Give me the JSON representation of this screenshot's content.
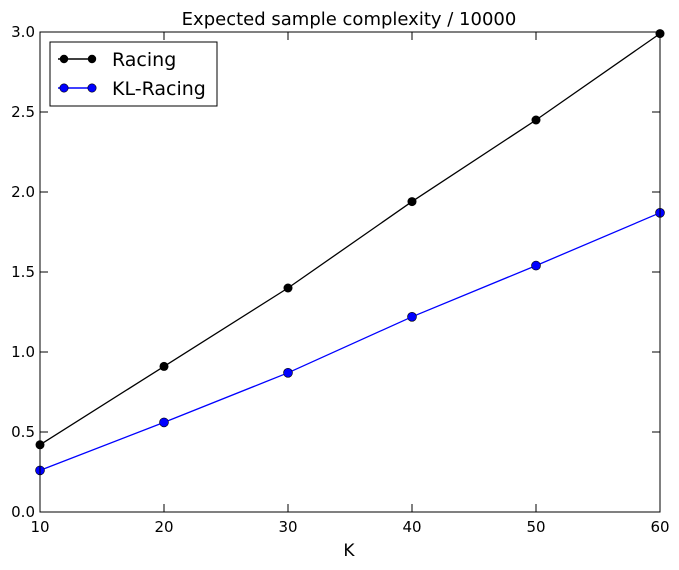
{
  "chart_data": {
    "type": "line",
    "title": "Expected sample complexity / 10000",
    "xlabel": "K",
    "ylabel": "",
    "x": [
      10,
      20,
      30,
      40,
      50,
      60
    ],
    "xlim": [
      10,
      60
    ],
    "ylim": [
      0.0,
      3.0
    ],
    "xticks": [
      "10",
      "20",
      "30",
      "40",
      "50",
      "60"
    ],
    "yticks": [
      "0.0",
      "0.5",
      "1.0",
      "1.5",
      "2.0",
      "2.5",
      "3.0"
    ],
    "xtick_values": [
      10,
      20,
      30,
      40,
      50,
      60
    ],
    "ytick_values": [
      0.0,
      0.5,
      1.0,
      1.5,
      2.0,
      2.5,
      3.0
    ],
    "grid": false,
    "legend_position": "top-left",
    "series": [
      {
        "name": "Racing",
        "color": "#000000",
        "marker": "circle",
        "values": [
          0.42,
          0.91,
          1.4,
          1.94,
          2.45,
          2.99
        ]
      },
      {
        "name": "KL-Racing",
        "color": "#0000ff",
        "marker": "circle",
        "values": [
          0.26,
          0.56,
          0.87,
          1.22,
          1.54,
          1.87
        ]
      }
    ]
  }
}
